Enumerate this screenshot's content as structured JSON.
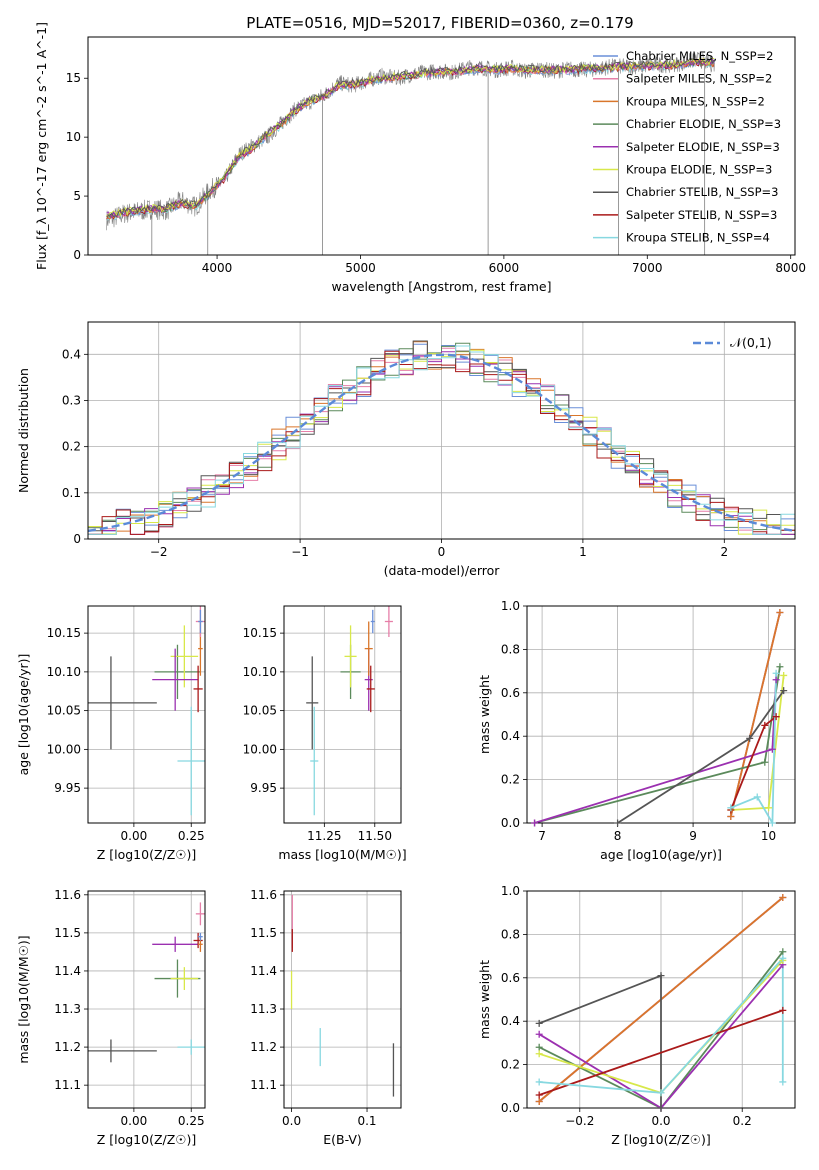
{
  "title": "PLATE=0516, MJD=52017, FIBERID=0360, z=0.179",
  "colors": {
    "chabrier_miles": "#6a8fd8",
    "salpeter_miles": "#e67fa8",
    "kroupa_miles": "#d9762b",
    "chabrier_elodie": "#5b8a5b",
    "salpeter_elodie": "#9b30b0",
    "kroupa_elodie": "#d8e84a",
    "chabrier_stelib": "#555555",
    "salpeter_stelib": "#aa1a1a",
    "kroupa_stelib": "#87d8e0",
    "data": "#808080",
    "gauss": "#5b8ad8"
  },
  "chart_data": [
    {
      "id": "spectrum",
      "type": "line",
      "xlabel": "wavelength [Angstrom, rest frame]",
      "ylabel": "Flux [f_λ 10^-17 erg cm^-2 s^-1 A^-1]",
      "xlim": [
        3100,
        8030
      ],
      "ylim": [
        0,
        18.5
      ],
      "xticks": [
        4000,
        5000,
        6000,
        7000,
        8000
      ],
      "yticks": [
        0,
        5,
        10,
        15
      ],
      "legend_position": "right",
      "legend": [
        {
          "label": "Chabrier MILES, N_SSP=2",
          "color": "#6a8fd8"
        },
        {
          "label": "Salpeter MILES, N_SSP=2",
          "color": "#e67fa8"
        },
        {
          "label": "Kroupa MILES, N_SSP=2",
          "color": "#d9762b"
        },
        {
          "label": "Chabrier ELODIE, N_SSP=3",
          "color": "#5b8a5b"
        },
        {
          "label": "Salpeter ELODIE, N_SSP=3",
          "color": "#9b30b0"
        },
        {
          "label": "Kroupa ELODIE, N_SSP=3",
          "color": "#d8e84a"
        },
        {
          "label": "Chabrier STELIB, N_SSP=3",
          "color": "#555555"
        },
        {
          "label": "Salpeter STELIB, N_SSP=3",
          "color": "#aa1a1a"
        },
        {
          "label": "Kroupa STELIB, N_SSP=4",
          "color": "#87d8e0"
        }
      ],
      "data_series": {
        "x": [
          3250,
          3350,
          3450,
          3550,
          3650,
          3750,
          3850,
          3950,
          4050,
          4150,
          4250,
          4350,
          4450,
          4550,
          4650,
          4750,
          4850,
          4950,
          5050,
          5150,
          5250,
          5350,
          5450,
          5550,
          5650,
          5750,
          5850,
          5950,
          6050,
          6150,
          6250,
          6350,
          6450,
          6550,
          6650,
          6750,
          6850,
          6950,
          7050,
          7150,
          7250,
          7350,
          7450
        ],
        "y": [
          3.0,
          3.5,
          3.7,
          3.9,
          3.8,
          4.6,
          4.1,
          5.5,
          6.3,
          8.5,
          9.3,
          10.0,
          11.2,
          12.4,
          13.0,
          13.6,
          14.6,
          14.4,
          14.8,
          15.2,
          15.0,
          15.3,
          15.5,
          15.6,
          15.5,
          15.9,
          15.9,
          15.7,
          15.9,
          15.6,
          15.8,
          15.6,
          15.8,
          15.7,
          15.8,
          16.0,
          16.0,
          16.0,
          16.2,
          16.1,
          16.3,
          16.6,
          16.2
        ]
      },
      "model_y": [
        3.3,
        3.6,
        3.8,
        3.9,
        3.9,
        4.4,
        4.2,
        5.3,
        6.5,
        8.3,
        9.1,
        10.2,
        11.1,
        12.3,
        13.1,
        13.5,
        14.4,
        14.5,
        14.7,
        15.0,
        15.1,
        15.2,
        15.4,
        15.5,
        15.6,
        15.7,
        15.8,
        15.7,
        15.8,
        15.7,
        15.7,
        15.7,
        15.7,
        15.8,
        15.8,
        15.9,
        16.0,
        16.0,
        16.1,
        16.1,
        16.2,
        16.4,
        16.3
      ]
    },
    {
      "id": "residuals",
      "type": "line",
      "xlabel": "(data-model)/error",
      "ylabel": "Normed distribution",
      "xlim": [
        -2.5,
        2.5
      ],
      "ylim": [
        0,
        0.47
      ],
      "xticks": [
        -2,
        -1,
        0,
        1,
        2
      ],
      "yticks": [
        0.0,
        0.1,
        0.2,
        0.3,
        0.4
      ],
      "legend_position": "top-right",
      "gauss_label": "𝒩(0,1)",
      "bin_edges_start": -2.5,
      "bin_width": 0.1
    },
    {
      "id": "age-vs-Z",
      "type": "scatter",
      "xlabel": "Z [log10(Z/Z☉)]",
      "ylabel": "age  [log10(age/yr)]",
      "xlim": [
        -0.2,
        0.31
      ],
      "ylim": [
        9.905,
        10.185
      ],
      "xticks": [
        0.0,
        0.25
      ],
      "xtick_labels": [
        "0.00",
        "0.25"
      ],
      "yticks": [
        9.95,
        10.0,
        10.05,
        10.1,
        10.15
      ],
      "ytick_labels": [
        "9.95",
        "10.00",
        "10.05",
        "10.10",
        "10.15"
      ],
      "points": [
        {
          "color": "#555555",
          "x": -0.1,
          "xerr": 0.2,
          "y": 10.06,
          "yerr": 0.06
        },
        {
          "color": "#87d8e0",
          "x": 0.25,
          "xerr": 0.06,
          "y": 9.985,
          "yerr": 0.07
        },
        {
          "color": "#5b8a5b",
          "x": 0.19,
          "xerr": 0.1,
          "y": 10.1,
          "yerr": 0.035
        },
        {
          "color": "#d8e84a",
          "x": 0.22,
          "xerr": 0.06,
          "y": 10.12,
          "yerr": 0.04
        },
        {
          "color": "#9b30b0",
          "x": 0.18,
          "xerr": 0.1,
          "y": 10.09,
          "yerr": 0.04
        },
        {
          "color": "#aa1a1a",
          "x": 0.28,
          "xerr": 0.02,
          "y": 10.078,
          "yerr": 0.03
        },
        {
          "color": "#d9762b",
          "x": 0.29,
          "xerr": 0.01,
          "y": 10.13,
          "yerr": 0.035
        },
        {
          "color": "#e67fa8",
          "x": 0.29,
          "xerr": 0.02,
          "y": 10.165,
          "yerr": 0.02
        },
        {
          "color": "#6a8fd8",
          "x": 0.29,
          "xerr": 0.01,
          "y": 10.165,
          "yerr": 0.015
        }
      ]
    },
    {
      "id": "age-vs-mass",
      "type": "scatter",
      "xlabel": "mass [log10(M/M☉)]",
      "ylabel": "",
      "xlim": [
        11.05,
        11.63
      ],
      "ylim": [
        9.905,
        10.185
      ],
      "xticks": [
        11.25,
        11.5
      ],
      "xtick_labels": [
        "11.25",
        "11.50"
      ],
      "yticks": [
        9.95,
        10.0,
        10.05,
        10.1,
        10.15
      ],
      "ytick_labels": [
        "9.95",
        "10.00",
        "10.05",
        "10.10",
        "10.15"
      ],
      "points": [
        {
          "color": "#555555",
          "x": 11.19,
          "xerr": 0.03,
          "y": 10.06,
          "yerr": 0.06
        },
        {
          "color": "#87d8e0",
          "x": 11.2,
          "xerr": 0.02,
          "y": 9.985,
          "yerr": 0.07
        },
        {
          "color": "#5b8a5b",
          "x": 11.38,
          "xerr": 0.05,
          "y": 10.1,
          "yerr": 0.035
        },
        {
          "color": "#d8e84a",
          "x": 11.38,
          "xerr": 0.03,
          "y": 10.12,
          "yerr": 0.04
        },
        {
          "color": "#9b30b0",
          "x": 11.47,
          "xerr": 0.02,
          "y": 10.09,
          "yerr": 0.04
        },
        {
          "color": "#aa1a1a",
          "x": 11.48,
          "xerr": 0.02,
          "y": 10.078,
          "yerr": 0.03
        },
        {
          "color": "#d9762b",
          "x": 11.47,
          "xerr": 0.02,
          "y": 10.13,
          "yerr": 0.035
        },
        {
          "color": "#e67fa8",
          "x": 11.57,
          "xerr": 0.02,
          "y": 10.165,
          "yerr": 0.02
        },
        {
          "color": "#6a8fd8",
          "x": 11.49,
          "xerr": 0.01,
          "y": 10.165,
          "yerr": 0.015
        }
      ]
    },
    {
      "id": "mass-vs-Z",
      "type": "scatter",
      "xlabel": "Z [log10(Z/Z☉)]",
      "ylabel": "mass [log10(M/M☉)]",
      "xlim": [
        -0.2,
        0.31
      ],
      "ylim": [
        11.04,
        11.61
      ],
      "xticks": [
        0.0,
        0.25
      ],
      "xtick_labels": [
        "0.00",
        "0.25"
      ],
      "yticks": [
        11.1,
        11.2,
        11.3,
        11.4,
        11.5,
        11.6
      ],
      "ytick_labels": [
        "11.1",
        "11.2",
        "11.3",
        "11.4",
        "11.5",
        "11.6"
      ],
      "points": [
        {
          "color": "#555555",
          "x": -0.1,
          "xerr": 0.2,
          "y": 11.19,
          "yerr": 0.03
        },
        {
          "color": "#87d8e0",
          "x": 0.25,
          "xerr": 0.06,
          "y": 11.2,
          "yerr": 0.02
        },
        {
          "color": "#5b8a5b",
          "x": 0.19,
          "xerr": 0.1,
          "y": 11.38,
          "yerr": 0.05
        },
        {
          "color": "#d8e84a",
          "x": 0.22,
          "xerr": 0.06,
          "y": 11.38,
          "yerr": 0.03
        },
        {
          "color": "#9b30b0",
          "x": 0.18,
          "xerr": 0.1,
          "y": 11.47,
          "yerr": 0.02
        },
        {
          "color": "#aa1a1a",
          "x": 0.28,
          "xerr": 0.02,
          "y": 11.48,
          "yerr": 0.02
        },
        {
          "color": "#d9762b",
          "x": 0.29,
          "xerr": 0.01,
          "y": 11.47,
          "yerr": 0.02
        },
        {
          "color": "#e67fa8",
          "x": 0.29,
          "xerr": 0.02,
          "y": 11.55,
          "yerr": 0.03
        },
        {
          "color": "#6a8fd8",
          "x": 0.29,
          "xerr": 0.01,
          "y": 11.49,
          "yerr": 0.01
        }
      ]
    },
    {
      "id": "mass-vs-EBV",
      "type": "scatter",
      "xlabel": "E(B-V)",
      "ylabel": "",
      "xlim": [
        -0.01,
        0.145
      ],
      "ylim": [
        11.04,
        11.61
      ],
      "xticks": [
        0.0,
        0.1
      ],
      "xtick_labels": [
        "0.0",
        "0.1"
      ],
      "yticks": [
        11.1,
        11.2,
        11.3,
        11.4,
        11.5,
        11.6
      ],
      "ytick_labels": [
        "11.1",
        "11.2",
        "11.3",
        "11.4",
        "11.5",
        "11.6"
      ],
      "points": [
        {
          "color": "#555555",
          "x": 0.135,
          "xerr": 0.0,
          "y": 11.14,
          "yerr": 0.07
        },
        {
          "color": "#87d8e0",
          "x": 0.038,
          "xerr": 0.0,
          "y": 11.2,
          "yerr": 0.05
        },
        {
          "color": "#d8e84a",
          "x": 0.0,
          "xerr": 0.0,
          "y": 11.35,
          "yerr": 0.05
        },
        {
          "color": "#e67fa8",
          "x": 0.001,
          "xerr": 0.0,
          "y": 11.53,
          "yerr": 0.07
        },
        {
          "color": "#aa1a1a",
          "x": 0.001,
          "xerr": 0.0,
          "y": 11.48,
          "yerr": 0.03
        }
      ]
    },
    {
      "id": "weight-vs-age",
      "type": "line",
      "xlabel": "age  [log10(age/yr)]",
      "ylabel": "mass weight",
      "xlim": [
        6.8,
        10.35
      ],
      "ylim": [
        0,
        1
      ],
      "xticks": [
        7,
        8,
        9,
        10
      ],
      "yticks": [
        0.0,
        0.2,
        0.4,
        0.6,
        0.8,
        1.0
      ],
      "ytick_labels": [
        "0.0",
        "0.2",
        "0.4",
        "0.6",
        "0.8",
        "1.0"
      ],
      "series": [
        {
          "color": "#6a8fd8",
          "x": [
            9.5,
            10.15
          ],
          "y": [
            0.03,
            0.97
          ]
        },
        {
          "color": "#e67fa8",
          "x": [
            9.5,
            10.15
          ],
          "y": [
            0.03,
            0.97
          ]
        },
        {
          "color": "#d9762b",
          "x": [
            9.5,
            10.15
          ],
          "y": [
            0.03,
            0.97
          ]
        },
        {
          "color": "#5b8a5b",
          "x": [
            6.9,
            9.95,
            10.15
          ],
          "y": [
            0.0,
            0.28,
            0.72
          ]
        },
        {
          "color": "#9b30b0",
          "x": [
            6.9,
            10.05,
            10.1
          ],
          "y": [
            0.0,
            0.34,
            0.66
          ]
        },
        {
          "color": "#d8e84a",
          "x": [
            9.5,
            10.0,
            10.2
          ],
          "y": [
            0.06,
            0.07,
            0.68
          ]
        },
        {
          "color": "#555555",
          "x": [
            8.0,
            9.75,
            10.2
          ],
          "y": [
            0.0,
            0.39,
            0.61
          ]
        },
        {
          "color": "#aa1a1a",
          "x": [
            9.5,
            9.95,
            10.1
          ],
          "y": [
            0.06,
            0.45,
            0.49
          ]
        },
        {
          "color": "#87d8e0",
          "x": [
            9.5,
            9.85,
            10.05,
            10.1
          ],
          "y": [
            0.07,
            0.12,
            0.0,
            0.69
          ]
        }
      ]
    },
    {
      "id": "weight-vs-Z",
      "type": "line",
      "xlabel": "Z [log10(Z/Z☉)]",
      "ylabel": "mass weight",
      "xlim": [
        -0.33,
        0.33
      ],
      "ylim": [
        0,
        1
      ],
      "xticks": [
        -0.2,
        0.0,
        0.2
      ],
      "xtick_labels": [
        "−0.2",
        "0.0",
        "0.2"
      ],
      "yticks": [
        0.0,
        0.2,
        0.4,
        0.6,
        0.8,
        1.0
      ],
      "ytick_labels": [
        "0.0",
        "0.2",
        "0.4",
        "0.6",
        "0.8",
        "1.0"
      ],
      "series": [
        {
          "color": "#6a8fd8",
          "x": [
            -0.3,
            0.3
          ],
          "y": [
            0.03,
            0.97
          ]
        },
        {
          "color": "#e67fa8",
          "x": [
            -0.3,
            0.3
          ],
          "y": [
            0.03,
            0.97
          ]
        },
        {
          "color": "#d9762b",
          "x": [
            -0.3,
            0.3
          ],
          "y": [
            0.03,
            0.97
          ]
        },
        {
          "color": "#5b8a5b",
          "x": [
            -0.3,
            0.0,
            0.3
          ],
          "y": [
            0.28,
            0.0,
            0.72
          ]
        },
        {
          "color": "#9b30b0",
          "x": [
            -0.3,
            0.0,
            0.3
          ],
          "y": [
            0.34,
            0.0,
            0.66
          ]
        },
        {
          "color": "#d8e84a",
          "x": [
            -0.3,
            0.0,
            0.3
          ],
          "y": [
            0.25,
            0.07,
            0.68
          ]
        },
        {
          "color": "#555555",
          "x": [
            -0.3,
            0.0,
            0.0
          ],
          "y": [
            0.39,
            0.61,
            0.0
          ]
        },
        {
          "color": "#aa1a1a",
          "x": [
            -0.3,
            0.3
          ],
          "y": [
            0.06,
            0.45
          ]
        },
        {
          "color": "#87d8e0",
          "x": [
            -0.3,
            0.0,
            0.3,
            0.3
          ],
          "y": [
            0.12,
            0.07,
            0.69,
            0.12
          ]
        }
      ]
    }
  ]
}
